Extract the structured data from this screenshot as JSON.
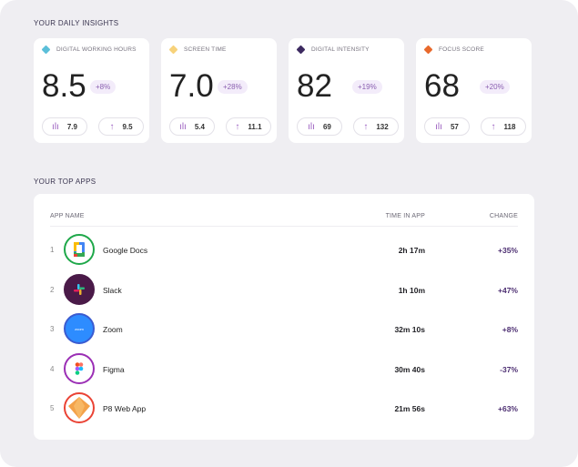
{
  "insights": {
    "title": "YOUR DAILY INSIGHTS",
    "cards": [
      {
        "label": "DIGITAL WORKING HOURS",
        "color": "#5bbfd9",
        "value": "8.5",
        "change": "+8%",
        "avg": "7.9",
        "high": "9.5"
      },
      {
        "label": "SCREEN TIME",
        "color": "#f7d27a",
        "value": "7.0",
        "change": "+28%",
        "avg": "5.4",
        "high": "11.1"
      },
      {
        "label": "DIGITAL INTENSITY",
        "color": "#3d2a60",
        "value": "82",
        "change": "+19%",
        "avg": "69",
        "high": "132"
      },
      {
        "label": "FOCUS SCORE",
        "color": "#e8692c",
        "value": "68",
        "change": "+20%",
        "avg": "57",
        "high": "118"
      }
    ]
  },
  "apps": {
    "title": "YOUR TOP APPS",
    "columns": {
      "name": "APP NAME",
      "time": "TIME IN APP",
      "change": "CHANGE"
    },
    "rows": [
      {
        "rank": "1",
        "name": "Google Docs",
        "time": "2h 17m",
        "change": "+35%",
        "ring": "#1fa84a",
        "bg": "#fff"
      },
      {
        "rank": "2",
        "name": "Slack",
        "time": "1h 10m",
        "change": "+47%",
        "ring": "#4a1a48",
        "bg": "#4a1a48"
      },
      {
        "rank": "3",
        "name": "Zoom",
        "time": "32m 10s",
        "change": "+8%",
        "ring": "#3a5bd0",
        "bg": "#2d8cff",
        "logo_text": "zoom"
      },
      {
        "rank": "4",
        "name": "Figma",
        "time": "30m 40s",
        "change": "-37%",
        "ring": "#9b2fb5",
        "bg": "#fff"
      },
      {
        "rank": "5",
        "name": "P8 Web App",
        "time": "21m 56s",
        "change": "+63%",
        "ring": "#ea4335",
        "bg": "#fff"
      }
    ]
  }
}
